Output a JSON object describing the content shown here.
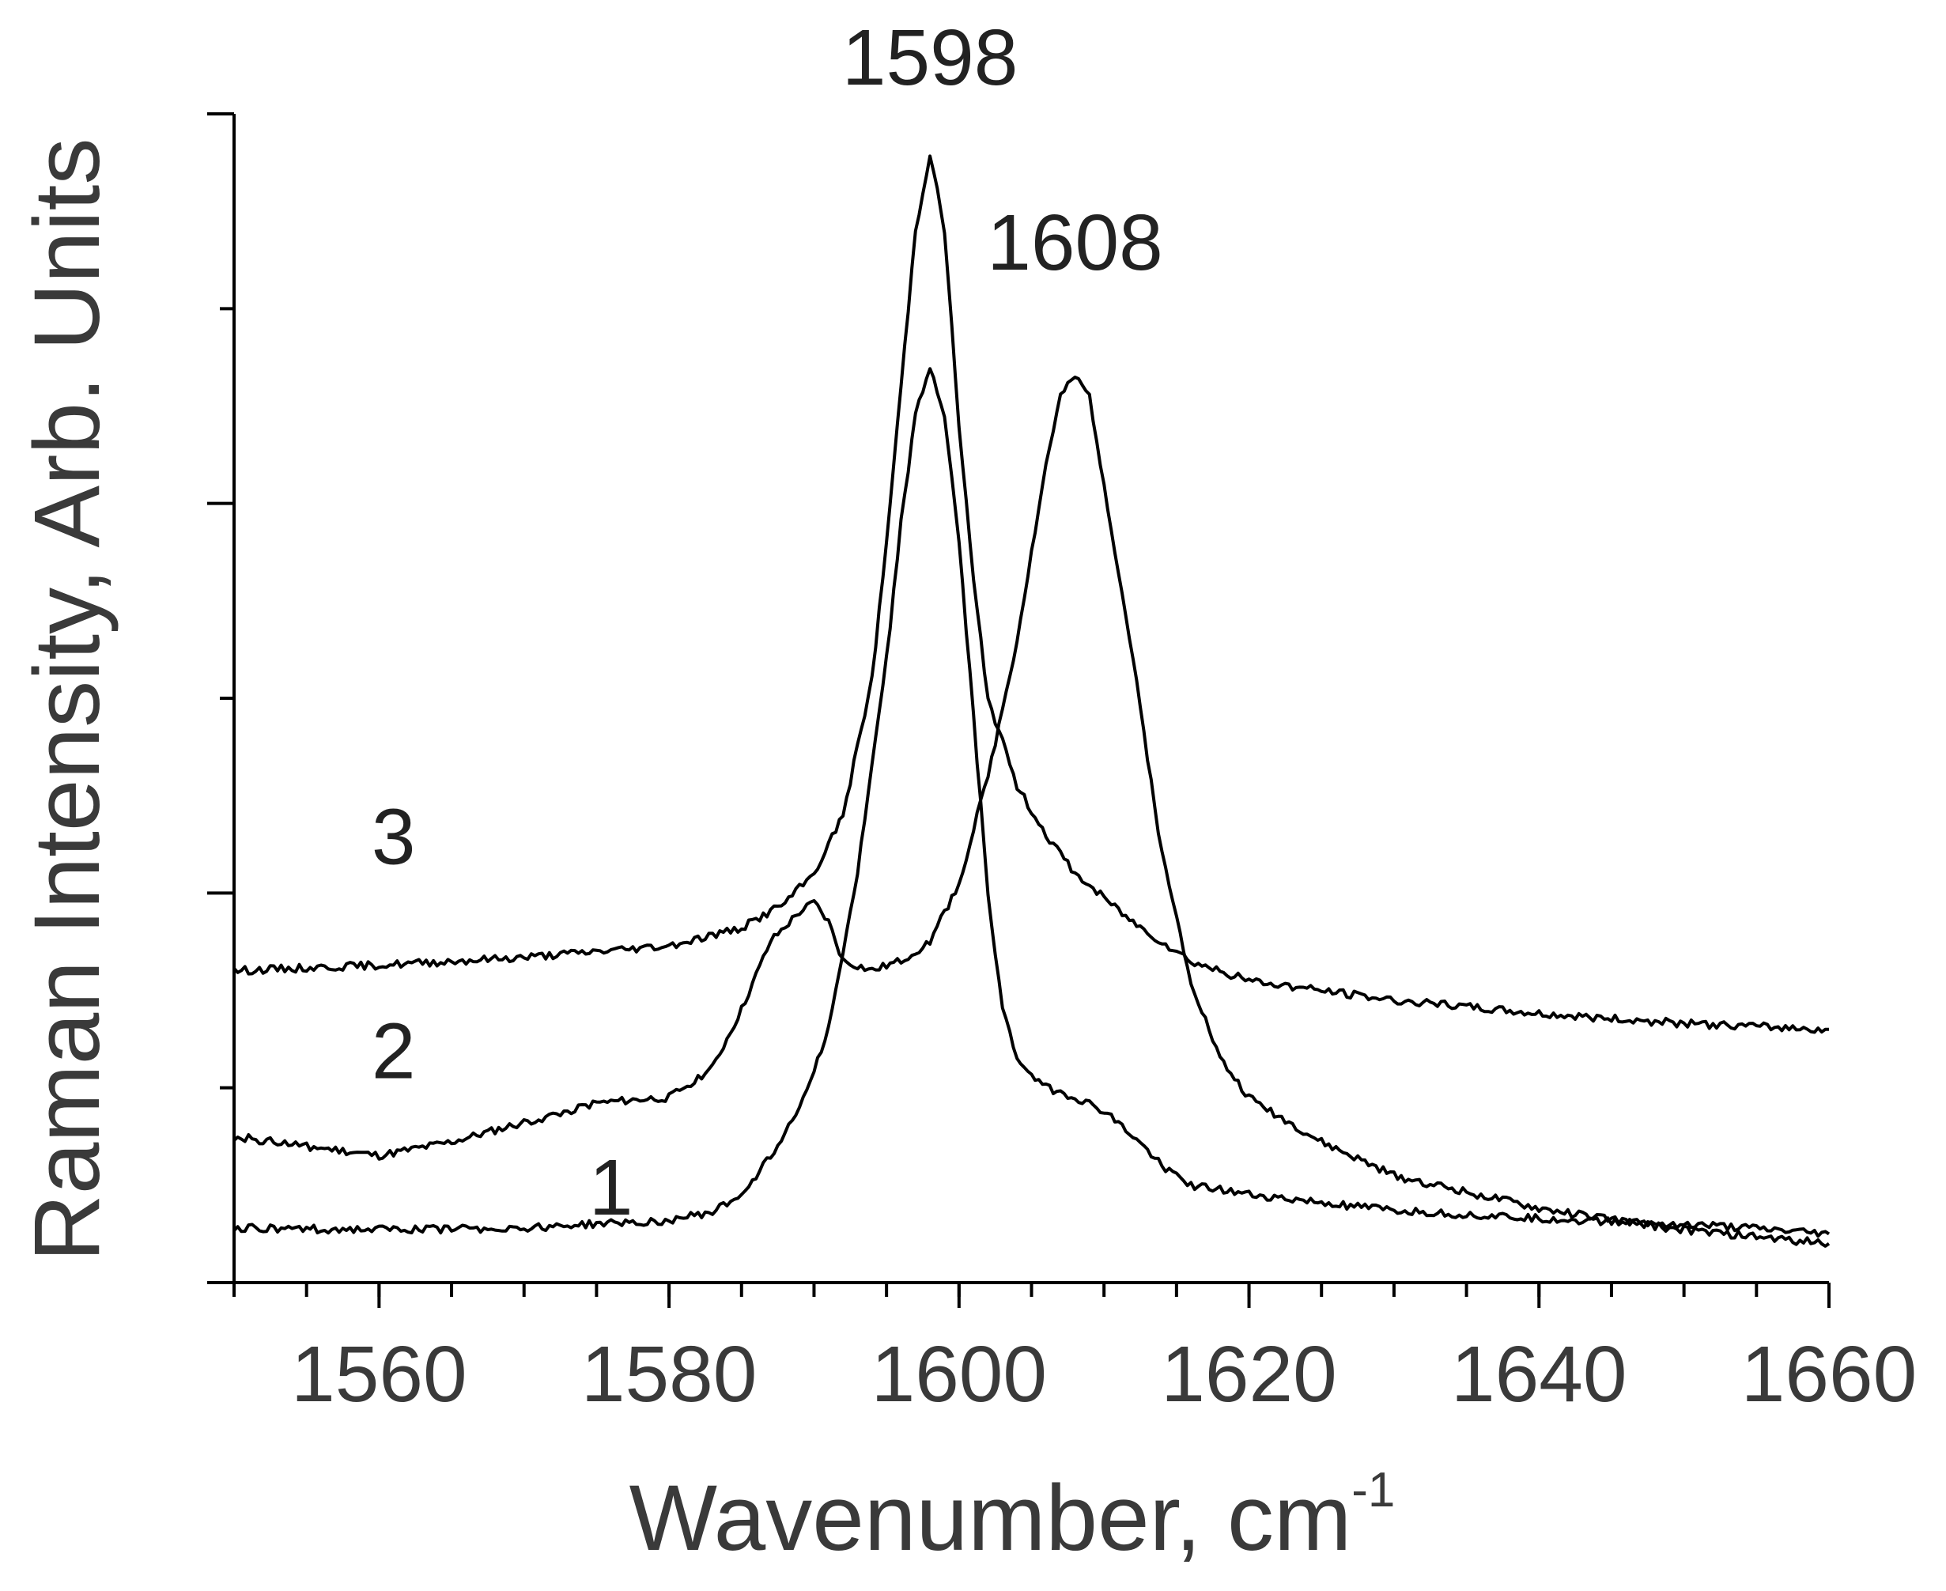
{
  "chart_data": {
    "type": "line",
    "xlabel": "Wavenumber, cm",
    "xlabel_superscript": "-1",
    "ylabel": "Raman Intensity, Arb. Units",
    "xlim": [
      1550,
      1660
    ],
    "ylim": [
      0,
      6
    ],
    "x_ticks": [
      1560,
      1580,
      1600,
      1620,
      1640,
      1660
    ],
    "x_tick_labels": [
      "1560",
      "1580",
      "1600",
      "1620",
      "1640",
      "1660"
    ],
    "x_minor_step": 5,
    "y_major_ticks": [
      0,
      2,
      4,
      6
    ],
    "y_minor_ticks": [
      1,
      3,
      5
    ],
    "y_tick_labels_shown": false,
    "grid": false,
    "series": [
      {
        "name": "1",
        "x": [
          1550,
          1560,
          1570,
          1580,
          1583,
          1585,
          1587,
          1589,
          1591,
          1593,
          1595,
          1596,
          1597,
          1598,
          1599,
          1600,
          1601,
          1602,
          1603,
          1604,
          1606,
          1608,
          1610,
          1612,
          1614,
          1616,
          1620,
          1630,
          1640,
          1650,
          1660
        ],
        "y": [
          0.28,
          0.27,
          0.28,
          0.32,
          0.36,
          0.45,
          0.65,
          0.9,
          1.3,
          2.1,
          3.2,
          3.9,
          4.45,
          4.7,
          4.45,
          3.8,
          2.9,
          2.0,
          1.4,
          1.15,
          1.0,
          0.95,
          0.88,
          0.75,
          0.6,
          0.5,
          0.45,
          0.37,
          0.33,
          0.3,
          0.25
        ]
      },
      {
        "name": "2",
        "x": [
          1550,
          1555,
          1560,
          1565,
          1570,
          1575,
          1580,
          1583,
          1585,
          1587,
          1589,
          1590,
          1591,
          1592,
          1594,
          1596,
          1598,
          1600,
          1602,
          1604,
          1606,
          1607,
          1608,
          1609,
          1610,
          1612,
          1614,
          1616,
          1618,
          1620,
          1625,
          1630,
          1640,
          1650,
          1660
        ],
        "y": [
          0.75,
          0.7,
          0.65,
          0.72,
          0.82,
          0.92,
          0.95,
          1.1,
          1.4,
          1.75,
          1.9,
          1.95,
          1.85,
          1.65,
          1.6,
          1.65,
          1.75,
          2.05,
          2.6,
          3.3,
          4.2,
          4.55,
          4.65,
          4.55,
          4.1,
          3.2,
          2.2,
          1.55,
          1.15,
          0.95,
          0.72,
          0.55,
          0.38,
          0.27,
          0.2
        ]
      },
      {
        "name": "3",
        "x": [
          1550,
          1560,
          1570,
          1580,
          1585,
          1588,
          1590,
          1592,
          1594,
          1595,
          1596,
          1597,
          1598,
          1599,
          1600,
          1601,
          1602,
          1604,
          1606,
          1608,
          1612,
          1616,
          1620,
          1630,
          1640,
          1650,
          1660
        ],
        "y": [
          1.6,
          1.63,
          1.67,
          1.73,
          1.82,
          1.95,
          2.1,
          2.4,
          3.1,
          3.8,
          4.6,
          5.4,
          5.8,
          5.4,
          4.4,
          3.6,
          3.0,
          2.55,
          2.3,
          2.1,
          1.85,
          1.65,
          1.55,
          1.45,
          1.38,
          1.33,
          1.3
        ]
      }
    ],
    "annotations": [
      {
        "text": "1598",
        "x": 1598,
        "y": 6.15
      },
      {
        "text": "1608",
        "x": 1608,
        "y": 5.2
      },
      {
        "text": "3",
        "x": 1561,
        "y": 2.15
      },
      {
        "text": "2",
        "x": 1561,
        "y": 1.05
      },
      {
        "text": "1",
        "x": 1576,
        "y": 0.35
      }
    ]
  }
}
